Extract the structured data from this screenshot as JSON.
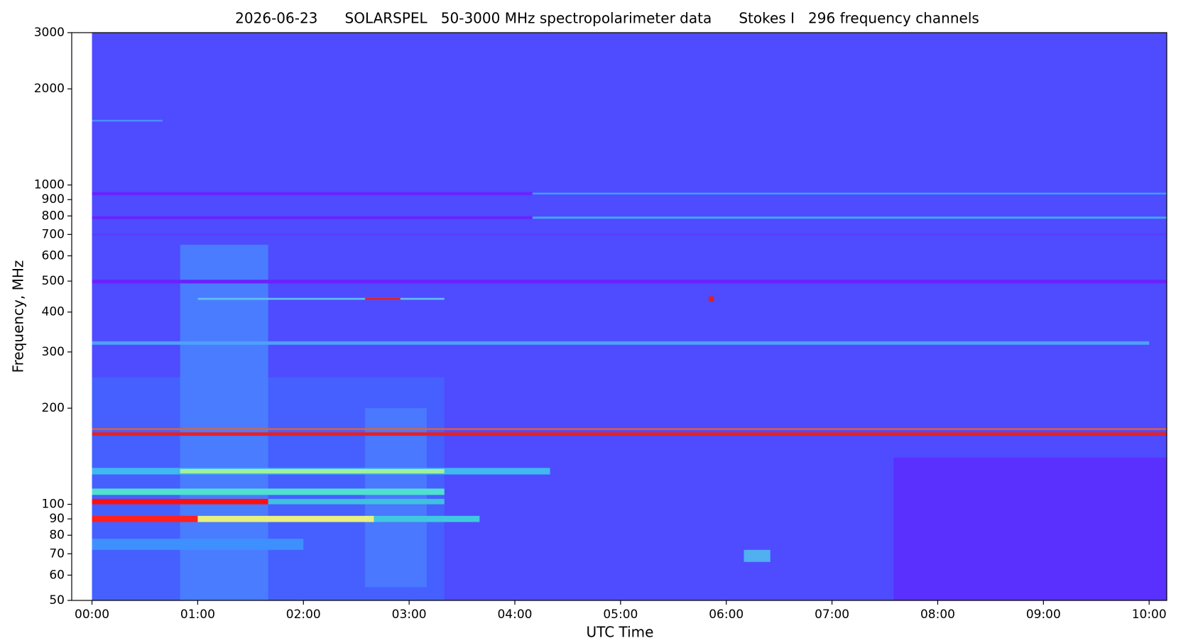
{
  "chart_data": {
    "type": "spectrogram",
    "title": "2026-06-23      SOLARSPEL   50-3000 MHz spectropolarimeter data      Stokes I   296 frequency channels",
    "x_label": "UTC Time",
    "y_label": "Frequency, MHz",
    "ylog": true,
    "ylim": [
      50,
      3000
    ],
    "yticks": [
      50,
      60,
      70,
      80,
      90,
      100,
      200,
      300,
      400,
      500,
      600,
      700,
      800,
      900,
      1000,
      2000,
      3000
    ],
    "xlim": [
      -11.5,
      610
    ],
    "xticks": [
      {
        "value": 0,
        "label": "00:00"
      },
      {
        "value": 60,
        "label": "01:00"
      },
      {
        "value": 120,
        "label": "02:00"
      },
      {
        "value": 180,
        "label": "03:00"
      },
      {
        "value": 240,
        "label": "04:00"
      },
      {
        "value": 300,
        "label": "05:00"
      },
      {
        "value": 360,
        "label": "06:00"
      },
      {
        "value": 420,
        "label": "07:00"
      },
      {
        "value": 480,
        "label": "08:00"
      },
      {
        "value": 540,
        "label": "09:00"
      },
      {
        "value": 600,
        "label": "10:00"
      }
    ],
    "time_range": [
      0,
      610
    ],
    "background_color": "#4f4bff",
    "bands": [
      {
        "f_low": 50,
        "f_high": 250,
        "t_start": 0,
        "t_end": 200,
        "color": "#4560ff"
      },
      {
        "f_low": 50,
        "f_high": 140,
        "t_start": 455,
        "t_end": 610,
        "color": "#5a30ff"
      },
      {
        "f_low": 50,
        "f_high": 650,
        "t_start": 50,
        "t_end": 100,
        "color": "#4a7cff"
      },
      {
        "f_low": 55,
        "f_high": 200,
        "t_start": 155,
        "t_end": 190,
        "color": "#4a78ff"
      },
      {
        "f_low": 72,
        "f_high": 78,
        "t_start": 0,
        "t_end": 120,
        "color": "#3f90ff"
      },
      {
        "f_low": 66,
        "f_high": 72,
        "t_start": 370,
        "t_end": 385,
        "color": "#50b0f0"
      },
      {
        "f_low": 88,
        "f_high": 92,
        "t_start": 0,
        "t_end": 60,
        "color": "#ff2020"
      },
      {
        "f_low": 88,
        "f_high": 92,
        "t_start": 60,
        "t_end": 160,
        "color": "#e8f080"
      },
      {
        "f_low": 88,
        "f_high": 92,
        "t_start": 160,
        "t_end": 220,
        "color": "#40c8e0"
      },
      {
        "f_low": 100,
        "f_high": 104,
        "t_start": 0,
        "t_end": 100,
        "color": "#ff1010"
      },
      {
        "f_low": 100,
        "f_high": 104,
        "t_start": 100,
        "t_end": 200,
        "color": "#40c0e0"
      },
      {
        "f_low": 107,
        "f_high": 112,
        "t_start": 0,
        "t_end": 200,
        "color": "#50e0d0"
      },
      {
        "f_low": 124,
        "f_high": 130,
        "t_start": 0,
        "t_end": 260,
        "color": "#40b8f0"
      },
      {
        "f_low": 125,
        "f_high": 129,
        "t_start": 50,
        "t_end": 200,
        "color": "#a0f0a0"
      },
      {
        "f_low": 164,
        "f_high": 168,
        "t_start": 0,
        "t_end": 610,
        "color": "#e82020"
      },
      {
        "f_low": 171,
        "f_high": 173,
        "t_start": 0,
        "t_end": 610,
        "color": "#f06020"
      },
      {
        "f_low": 316,
        "f_high": 324,
        "t_start": 0,
        "t_end": 600,
        "color": "#4fa0ff"
      },
      {
        "f_low": 437,
        "f_high": 443,
        "t_start": 60,
        "t_end": 200,
        "color": "#60c0f0"
      },
      {
        "f_low": 437,
        "f_high": 443,
        "t_start": 155,
        "t_end": 175,
        "color": "#e02020"
      },
      {
        "f_low": 432,
        "f_high": 448,
        "t_start": 350,
        "t_end": 353,
        "color": "#e02020"
      },
      {
        "f_low": 492,
        "f_high": 505,
        "t_start": 0,
        "t_end": 610,
        "color": "#6a22ff"
      },
      {
        "f_low": 695,
        "f_high": 705,
        "t_start": 0,
        "t_end": 610,
        "color": "#5a3cff"
      },
      {
        "f_low": 782,
        "f_high": 798,
        "t_start": 0,
        "t_end": 250,
        "color": "#6a22ff"
      },
      {
        "f_low": 784,
        "f_high": 796,
        "t_start": 250,
        "t_end": 610,
        "color": "#40a8f0"
      },
      {
        "f_low": 930,
        "f_high": 950,
        "t_start": 0,
        "t_end": 250,
        "color": "#6a22ff"
      },
      {
        "f_low": 934,
        "f_high": 946,
        "t_start": 250,
        "t_end": 610,
        "color": "#3aa0ff"
      },
      {
        "f_low": 1580,
        "f_high": 1600,
        "t_start": 0,
        "t_end": 40,
        "color": "#4a90ff"
      }
    ]
  }
}
